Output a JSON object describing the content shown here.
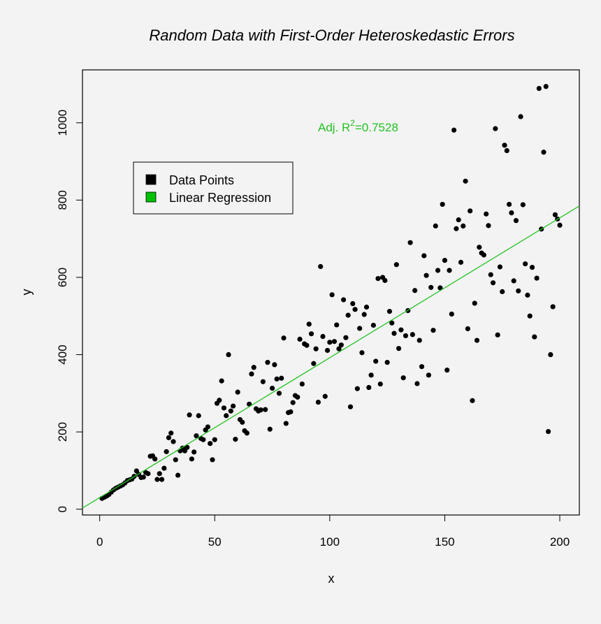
{
  "chart_data": {
    "type": "scatter",
    "title": "Random Data with First-Order Heteroskedastic Errors",
    "xlabel": "x",
    "ylabel": "y",
    "xlim": [
      -7.5,
      208.5
    ],
    "ylim": [
      -15,
      1137
    ],
    "x_ticks": [
      0,
      50,
      100,
      150,
      200
    ],
    "y_ticks": [
      0,
      200,
      400,
      600,
      800,
      1000
    ],
    "grid": false,
    "legend_position": "top-left",
    "legend": [
      {
        "label": "Data Points",
        "color": "#000000"
      },
      {
        "label": "Linear Regression",
        "color": "#00c000"
      }
    ],
    "annotation": {
      "prefix": "Adj. R",
      "superscript": "2",
      "value": "=0.7528",
      "color": "#22c322"
    },
    "regression_line": {
      "intercept": 30,
      "slope": 3.62,
      "color": "#22c322"
    },
    "series": [
      {
        "name": "Data Points",
        "color": "#000000",
        "points": [
          [
            1,
            28
          ],
          [
            2,
            31
          ],
          [
            3,
            34
          ],
          [
            4,
            38
          ],
          [
            5,
            44
          ],
          [
            6,
            50
          ],
          [
            7,
            54
          ],
          [
            8,
            57
          ],
          [
            9,
            60
          ],
          [
            10,
            63
          ],
          [
            11,
            68
          ],
          [
            12,
            74
          ],
          [
            13,
            76
          ],
          [
            14,
            78
          ],
          [
            15,
            85
          ],
          [
            16,
            99
          ],
          [
            17,
            90
          ],
          [
            18,
            82
          ],
          [
            19,
            83
          ],
          [
            20,
            95
          ],
          [
            21,
            92
          ],
          [
            22,
            137
          ],
          [
            23,
            138
          ],
          [
            24,
            130
          ],
          [
            25,
            77
          ],
          [
            26,
            92
          ],
          [
            27,
            77
          ],
          [
            28,
            106
          ],
          [
            29,
            149
          ],
          [
            30,
            185
          ],
          [
            31,
            197
          ],
          [
            32,
            175
          ],
          [
            33,
            128
          ],
          [
            34,
            88
          ],
          [
            35,
            151
          ],
          [
            36,
            158
          ],
          [
            37,
            151
          ],
          [
            38,
            160
          ],
          [
            39,
            244
          ],
          [
            40,
            130
          ],
          [
            41,
            148
          ],
          [
            42,
            190
          ],
          [
            43,
            242
          ],
          [
            44,
            183
          ],
          [
            45,
            180
          ],
          [
            46,
            205
          ],
          [
            47,
            213
          ],
          [
            48,
            170
          ],
          [
            49,
            128
          ],
          [
            50,
            180
          ],
          [
            51,
            274
          ],
          [
            52,
            282
          ],
          [
            53,
            332
          ],
          [
            54,
            262
          ],
          [
            55,
            242
          ],
          [
            56,
            400
          ],
          [
            57,
            254
          ],
          [
            58,
            267
          ],
          [
            59,
            181
          ],
          [
            60,
            303
          ],
          [
            61,
            232
          ],
          [
            62,
            225
          ],
          [
            63,
            203
          ],
          [
            64,
            197
          ],
          [
            65,
            272
          ],
          [
            66,
            350
          ],
          [
            67,
            367
          ],
          [
            68,
            260
          ],
          [
            69,
            254
          ],
          [
            70,
            257
          ],
          [
            71,
            330
          ],
          [
            72,
            258
          ],
          [
            73,
            380
          ],
          [
            74,
            207
          ],
          [
            75,
            313
          ],
          [
            76,
            374
          ],
          [
            77,
            337
          ],
          [
            78,
            300
          ],
          [
            79,
            339
          ],
          [
            80,
            443
          ],
          [
            81,
            222
          ],
          [
            82,
            250
          ],
          [
            83,
            252
          ],
          [
            84,
            276
          ],
          [
            85,
            294
          ],
          [
            86,
            290
          ],
          [
            87,
            440
          ],
          [
            88,
            324
          ],
          [
            89,
            428
          ],
          [
            90,
            424
          ],
          [
            91,
            479
          ],
          [
            92,
            454
          ],
          [
            93,
            377
          ],
          [
            94,
            415
          ],
          [
            95,
            277
          ],
          [
            96,
            628
          ],
          [
            97,
            447
          ],
          [
            98,
            292
          ],
          [
            99,
            411
          ],
          [
            100,
            432
          ],
          [
            101,
            555
          ],
          [
            102,
            434
          ],
          [
            103,
            477
          ],
          [
            104,
            415
          ],
          [
            105,
            425
          ],
          [
            106,
            542
          ],
          [
            107,
            444
          ],
          [
            108,
            502
          ],
          [
            109,
            265
          ],
          [
            110,
            532
          ],
          [
            111,
            517
          ],
          [
            112,
            312
          ],
          [
            113,
            468
          ],
          [
            114,
            405
          ],
          [
            115,
            504
          ],
          [
            116,
            523
          ],
          [
            117,
            315
          ],
          [
            118,
            347
          ],
          [
            119,
            476
          ],
          [
            120,
            383
          ],
          [
            121,
            597
          ],
          [
            122,
            324
          ],
          [
            123,
            600
          ],
          [
            124,
            592
          ],
          [
            125,
            380
          ],
          [
            126,
            512
          ],
          [
            127,
            482
          ],
          [
            128,
            455
          ],
          [
            129,
            633
          ],
          [
            130,
            416
          ],
          [
            131,
            464
          ],
          [
            132,
            340
          ],
          [
            133,
            449
          ],
          [
            134,
            514
          ],
          [
            135,
            690
          ],
          [
            136,
            452
          ],
          [
            137,
            566
          ],
          [
            138,
            325
          ],
          [
            139,
            437
          ],
          [
            140,
            369
          ],
          [
            141,
            656
          ],
          [
            142,
            605
          ],
          [
            143,
            347
          ],
          [
            144,
            574
          ],
          [
            145,
            463
          ],
          [
            146,
            733
          ],
          [
            147,
            618
          ],
          [
            148,
            573
          ],
          [
            149,
            789
          ],
          [
            150,
            644
          ],
          [
            151,
            360
          ],
          [
            152,
            618
          ],
          [
            153,
            505
          ],
          [
            154,
            981
          ],
          [
            155,
            726
          ],
          [
            156,
            749
          ],
          [
            157,
            639
          ],
          [
            158,
            733
          ],
          [
            159,
            849
          ],
          [
            160,
            467
          ],
          [
            161,
            772
          ],
          [
            162,
            281
          ],
          [
            163,
            533
          ],
          [
            164,
            437
          ],
          [
            165,
            678
          ],
          [
            166,
            663
          ],
          [
            167,
            658
          ],
          [
            168,
            764
          ],
          [
            169,
            734
          ],
          [
            170,
            607
          ],
          [
            171,
            586
          ],
          [
            172,
            985
          ],
          [
            173,
            451
          ],
          [
            174,
            627
          ],
          [
            175,
            563
          ],
          [
            176,
            942
          ],
          [
            177,
            928
          ],
          [
            178,
            789
          ],
          [
            179,
            767
          ],
          [
            180,
            591
          ],
          [
            181,
            747
          ],
          [
            182,
            565
          ],
          [
            183,
            1016
          ],
          [
            184,
            788
          ],
          [
            185,
            635
          ],
          [
            186,
            554
          ],
          [
            187,
            500
          ],
          [
            188,
            626
          ],
          [
            189,
            446
          ],
          [
            190,
            598
          ],
          [
            191,
            1089
          ],
          [
            192,
            725
          ],
          [
            193,
            924
          ],
          [
            194,
            1094
          ],
          [
            195,
            201
          ],
          [
            196,
            400
          ],
          [
            197,
            524
          ],
          [
            198,
            762
          ],
          [
            199,
            751
          ],
          [
            200,
            735
          ]
        ]
      }
    ]
  }
}
